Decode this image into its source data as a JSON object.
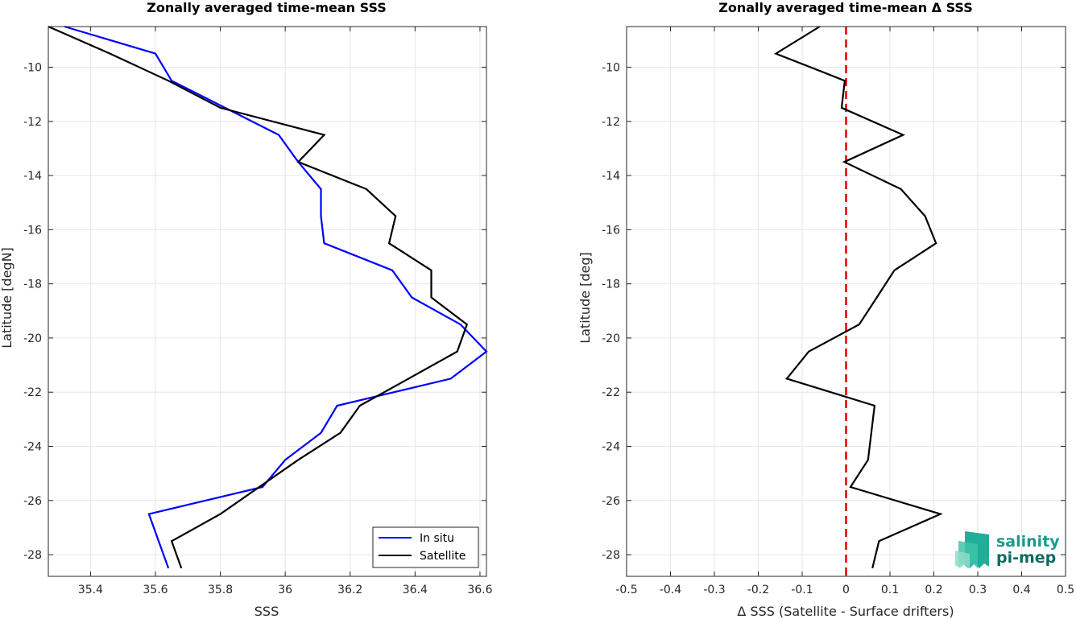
{
  "chart_data": [
    {
      "type": "line",
      "title": "Zonally averaged time-mean SSS",
      "xlabel": "SSS",
      "ylabel": "Latitude [degN]",
      "xlim": [
        35.27,
        36.62
      ],
      "ylim": [
        -28.8,
        -8.5
      ],
      "xticks": [
        35.4,
        35.6,
        35.8,
        36,
        36.2,
        36.4,
        36.6
      ],
      "xtick_labels": [
        "35.4",
        "35.6",
        "35.8",
        "36",
        "36.2",
        "36.4",
        "36.6"
      ],
      "yticks": [
        -28,
        -26,
        -24,
        -22,
        -20,
        -18,
        -16,
        -14,
        -12,
        -10
      ],
      "ytick_labels": [
        "-28",
        "-26",
        "-24",
        "-22",
        "-20",
        "-18",
        "-16",
        "-14",
        "-12",
        "-10"
      ],
      "grid": true,
      "legend": "bottom-right",
      "series": [
        {
          "name": "In situ",
          "color": "#0000ff",
          "x": [
            35.32,
            35.6,
            35.65,
            35.98,
            36.04,
            36.11,
            36.11,
            36.12,
            36.33,
            36.39,
            36.54,
            36.62,
            36.51,
            36.16,
            36.11,
            36.0,
            35.93,
            35.58,
            35.64
          ],
          "y": [
            -8.5,
            -9.5,
            -10.5,
            -12.5,
            -13.5,
            -14.5,
            -15.5,
            -16.5,
            -17.5,
            -18.5,
            -19.5,
            -20.5,
            -21.5,
            -22.5,
            -23.5,
            -24.5,
            -25.5,
            -26.5,
            -28.5
          ]
        },
        {
          "name": "Satellite",
          "color": "#000000",
          "x": [
            35.27,
            35.46,
            35.64,
            35.8,
            36.12,
            36.04,
            36.25,
            36.34,
            36.32,
            36.45,
            36.45,
            36.56,
            36.53,
            36.38,
            36.23,
            36.17,
            36.04,
            35.8,
            35.65,
            35.68
          ],
          "y": [
            -8.5,
            -9.5,
            -10.5,
            -11.5,
            -12.5,
            -13.5,
            -14.5,
            -15.5,
            -16.5,
            -17.5,
            -18.5,
            -19.5,
            -20.5,
            -21.5,
            -22.5,
            -23.5,
            -24.5,
            -26.5,
            -27.5,
            -28.5
          ]
        }
      ]
    },
    {
      "type": "line",
      "title": "Zonally averaged time-mean Δ SSS",
      "xlabel": "Δ SSS (Satellite - Surface drifters)",
      "ylabel": "Latitude [deg]",
      "xlim": [
        -0.5,
        0.5
      ],
      "ylim": [
        -28.8,
        -8.5
      ],
      "xticks": [
        -0.5,
        -0.4,
        -0.3,
        -0.2,
        -0.1,
        0,
        0.1,
        0.2,
        0.3,
        0.4,
        0.5
      ],
      "xtick_labels": [
        "-0.5",
        "-0.4",
        "-0.3",
        "-0.2",
        "-0.1",
        "0",
        "0.1",
        "0.2",
        "0.3",
        "0.4",
        "0.5"
      ],
      "yticks": [
        -28,
        -26,
        -24,
        -22,
        -20,
        -18,
        -16,
        -14,
        -12,
        -10
      ],
      "ytick_labels": [
        "-28",
        "-26",
        "-24",
        "-22",
        "-20",
        "-18",
        "-16",
        "-14",
        "-12",
        "-10"
      ],
      "grid": true,
      "reference_line": {
        "x": 0,
        "color": "#e00000",
        "style": "dashed"
      },
      "series": [
        {
          "color": "#000000",
          "x": [
            -0.06,
            -0.16,
            -0.003,
            -0.01,
            0.13,
            -0.004,
            0.125,
            0.18,
            0.205,
            0.11,
            0.07,
            0.03,
            -0.085,
            -0.135,
            0.065,
            0.05,
            0.01,
            0.215,
            0.075,
            0.06
          ],
          "y": [
            -8.5,
            -9.5,
            -10.5,
            -11.5,
            -12.5,
            -13.5,
            -14.5,
            -15.5,
            -16.5,
            -17.5,
            -18.5,
            -19.5,
            -20.5,
            -21.5,
            -22.5,
            -24.5,
            -25.5,
            -26.5,
            -27.5,
            -28.5
          ]
        }
      ]
    }
  ],
  "logo": {
    "line1": "salinity",
    "line2": "pi-mep"
  },
  "colors": {
    "logo_teal": "#1a9a8a",
    "logo_dark": "#0f6b5f"
  }
}
